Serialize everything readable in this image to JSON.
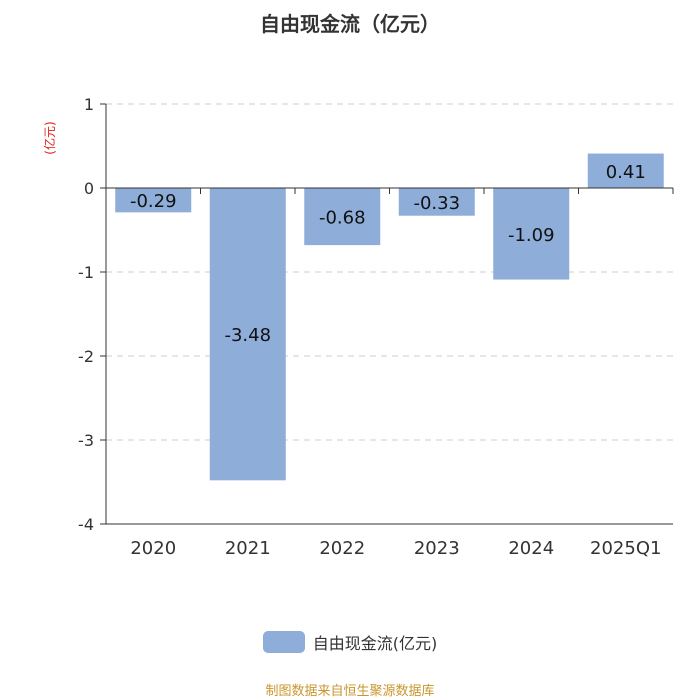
{
  "chart_data": {
    "type": "bar",
    "title": "自由现金流（亿元）",
    "ylabel": "亿元",
    "categories": [
      "2020",
      "2021",
      "2022",
      "2023",
      "2024",
      "2025Q1"
    ],
    "series": [
      {
        "name": "自由现金流(亿元)",
        "values": [
          -0.29,
          -3.48,
          -0.68,
          -0.33,
          -1.09,
          0.41
        ]
      }
    ],
    "data_labels": [
      "-0.29",
      "-3.48",
      "-0.68",
      "-0.33",
      "-1.09",
      "0.41"
    ],
    "ylim": [
      -4,
      1
    ],
    "yticks": [
      1,
      0,
      -1,
      -2,
      -3,
      -4
    ],
    "grid": true,
    "legend_position": "bottom"
  },
  "colors": {
    "bar": "#8eadd9",
    "ylabel": "#e0201c",
    "source": "#c8962d",
    "grid": "#cccccc",
    "axis": "#333333"
  },
  "source_text": "制图数据来自恒生聚源数据库"
}
